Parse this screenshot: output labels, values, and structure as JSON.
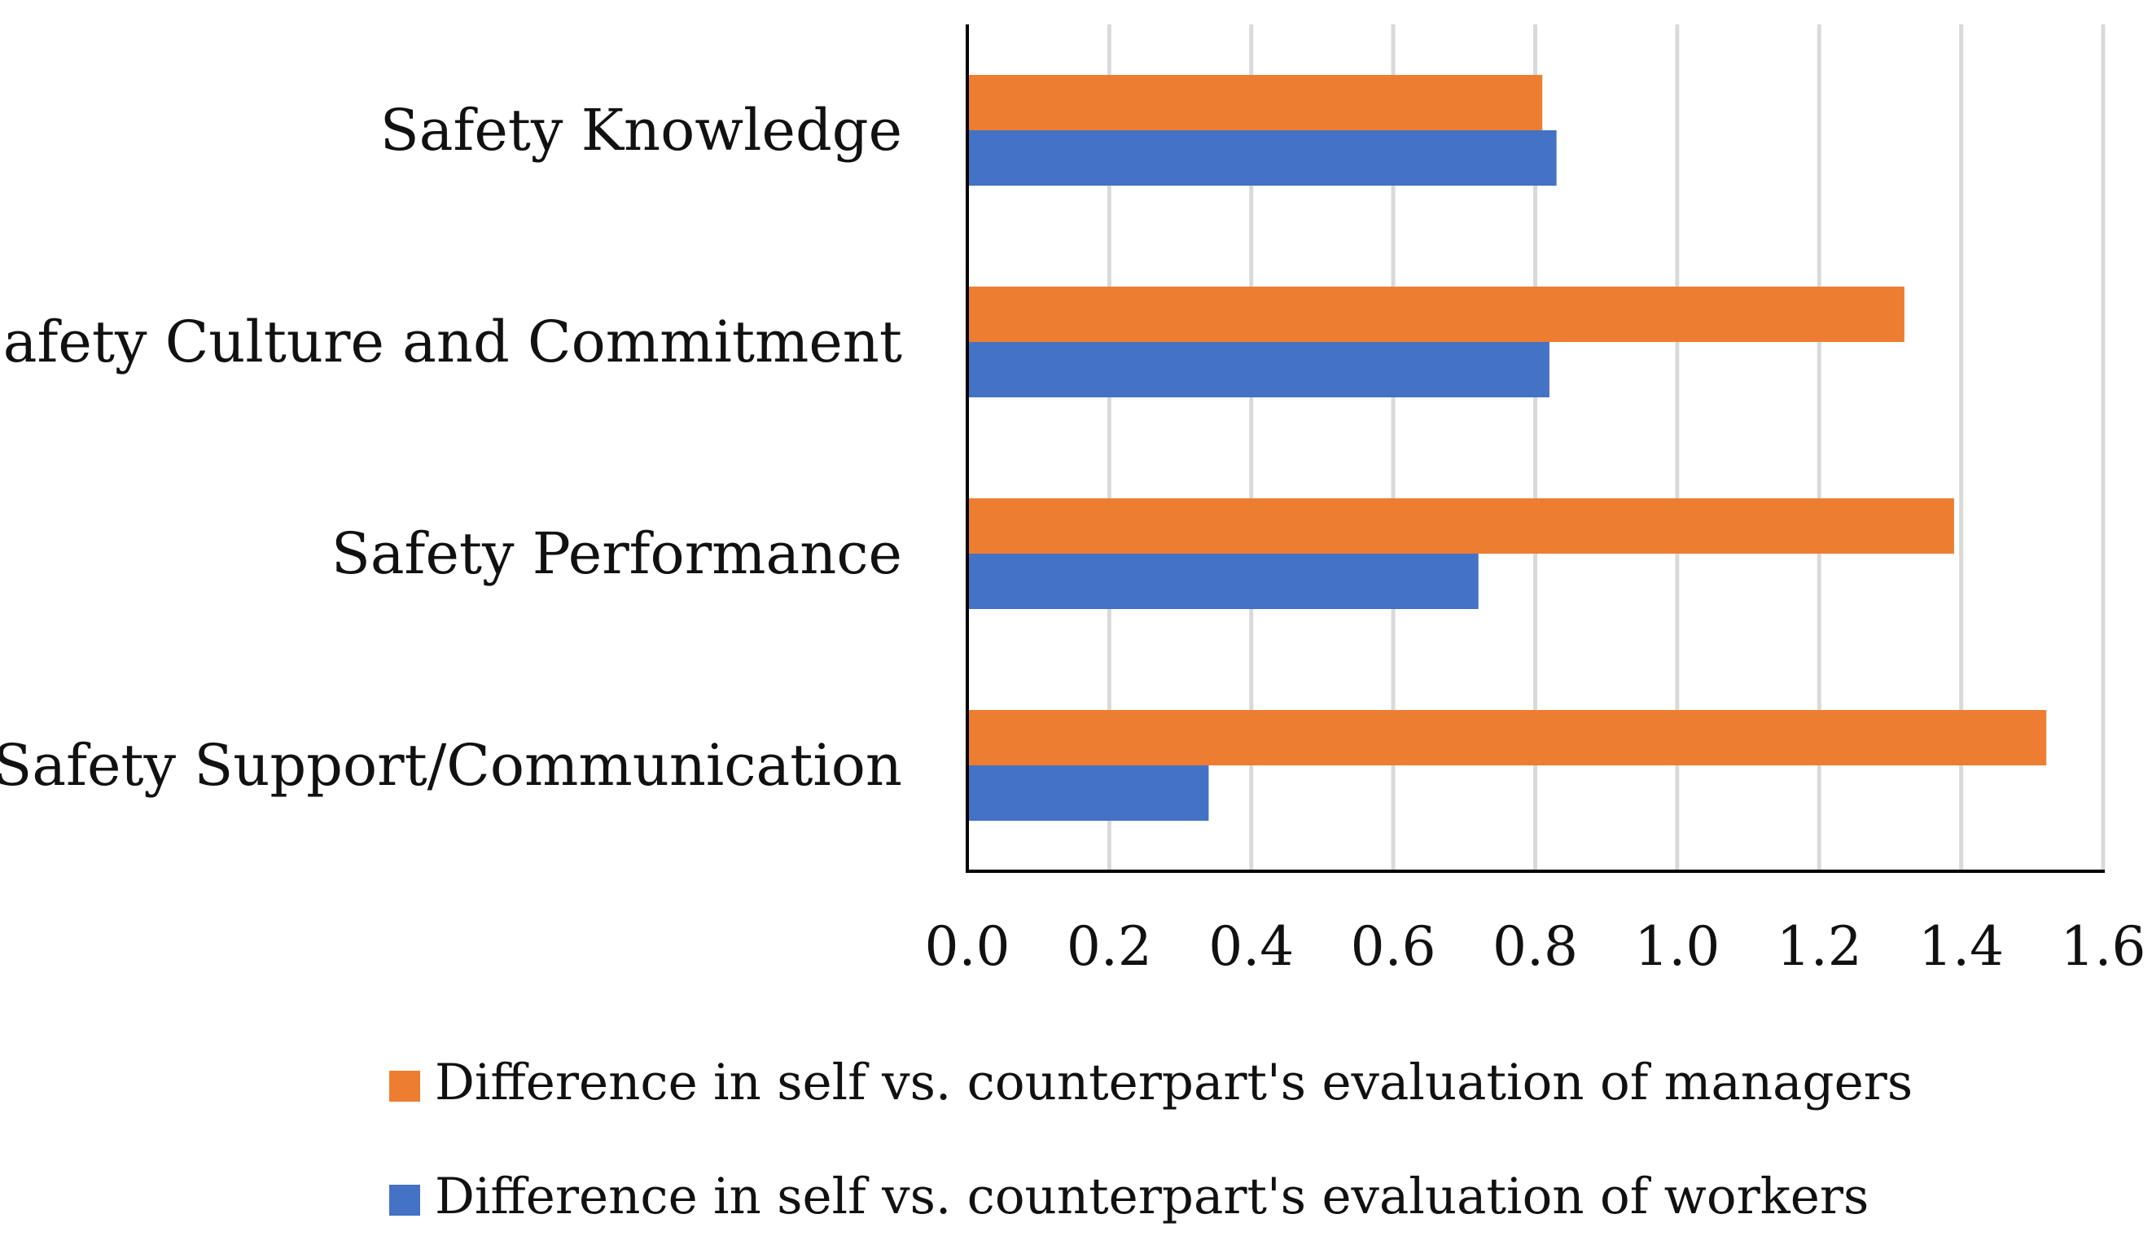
{
  "chart_data": {
    "type": "bar",
    "orientation": "horizontal",
    "categories": [
      "Safety Knowledge",
      "Safety Culture and Commitment",
      "Safety Performance",
      "Safety Support/Communication"
    ],
    "series": [
      {
        "name": "Difference in self vs. counterpart's evaluation of managers",
        "color": "#ED7D31",
        "values": [
          0.81,
          1.32,
          1.39,
          1.52
        ]
      },
      {
        "name": "Difference in self vs. counterpart's evaluation of workers",
        "color": "#4472C4",
        "values": [
          0.83,
          0.82,
          0.72,
          0.34
        ]
      }
    ],
    "xlim": [
      0,
      1.6
    ],
    "xticks": [
      "0.0",
      "0.2",
      "0.4",
      "0.6",
      "0.8",
      "1.0",
      "1.2",
      "1.4",
      "1.6"
    ],
    "grid": true,
    "legend_position": "bottom",
    "title": "",
    "xlabel": "",
    "ylabel": ""
  }
}
